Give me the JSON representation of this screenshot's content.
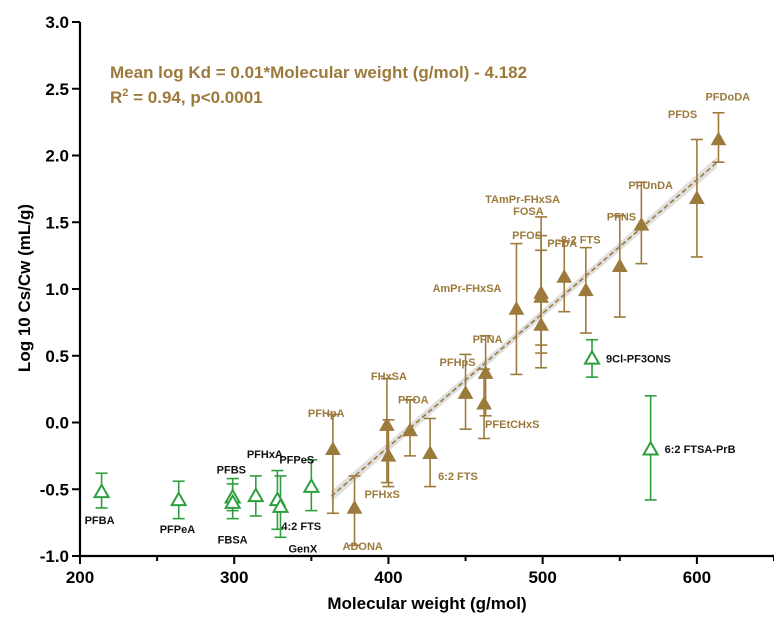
{
  "chart_data": {
    "type": "scatter",
    "title": "",
    "xlabel": "Molecular weight (g/mol)",
    "ylabel": "Log 10 Cs/Cw (mL/g)",
    "xlim": [
      200,
      650
    ],
    "ylim": [
      -1.0,
      3.0
    ],
    "xticks": [
      200,
      300,
      400,
      500,
      600
    ],
    "yticks": [
      -1.0,
      -0.5,
      0.0,
      0.5,
      1.0,
      1.5,
      2.0,
      2.5,
      3.0
    ],
    "ytick_labels": [
      "-1.0",
      "-0.5",
      "0.0",
      "0.5",
      "1.0",
      "1.5",
      "2.0",
      "2.5",
      "3.0"
    ],
    "grid": false,
    "annotation": {
      "equation": "Mean log Kd = 0.01*Molecular weight (g/mol) - 4.182",
      "r2_prefix": "R",
      "r2_sup": "2",
      "r2_rest": " = 0.94, p<0.0001"
    },
    "colors": {
      "brown": "#9c7a3c",
      "green": "#2e9e3e",
      "band": "#d9d9d9",
      "axis": "#000000"
    },
    "regression": {
      "slope": 0.01,
      "intercept": -4.182,
      "x_range": [
        363,
        613
      ]
    },
    "series": [
      {
        "marker": "filled-triangle",
        "color": "brown",
        "points": [
          {
            "x": 364,
            "y": -0.2,
            "lo": -0.68,
            "hi": 0.06,
            "label": "PFHpA",
            "lx": -25,
            "ly": -32
          },
          {
            "x": 378,
            "y": -0.64,
            "lo": -0.92,
            "hi": -0.4,
            "label": "ADONA",
            "lx": -12,
            "ly": 42
          },
          {
            "x": 399,
            "y": -0.02,
            "lo": -0.45,
            "hi": 0.33,
            "label": "FHxSA",
            "lx": -16,
            "ly": -45
          },
          {
            "x": 400,
            "y": -0.25,
            "lo": -0.48,
            "hi": 0.02,
            "label": "PFHxS",
            "lx": -24,
            "ly": 42
          },
          {
            "x": 414,
            "y": -0.06,
            "lo": -0.25,
            "hi": 0.17,
            "label": "PFOA",
            "lx": -12,
            "ly": -27
          },
          {
            "x": 427,
            "y": -0.23,
            "lo": -0.48,
            "hi": 0.03,
            "label": "6:2 FTS",
            "lx": 8,
            "ly": 27
          },
          {
            "x": 450,
            "y": 0.22,
            "lo": -0.05,
            "hi": 0.51,
            "label": "PFHpS",
            "lx": -26,
            "ly": -27
          },
          {
            "x": 463,
            "y": 0.37,
            "lo": 0.05,
            "hi": 0.65,
            "label": "PFNA",
            "lx": -13,
            "ly": -30
          },
          {
            "x": 462,
            "y": 0.14,
            "lo": -0.12,
            "hi": 0.4,
            "label": "PFEtCHxS",
            "lx": 1,
            "ly": 24
          },
          {
            "x": 483,
            "y": 0.85,
            "lo": 0.36,
            "hi": 1.34,
            "label": "AmPr-FHxSA",
            "lx": -84,
            "ly": -17
          },
          {
            "x": 499,
            "y": 0.94,
            "lo": 0.52,
            "hi": 1.54,
            "label": "TAmPr-FHxSA",
            "lx": -56,
            "ly": -94
          },
          {
            "x": 499,
            "y": 0.97,
            "lo": 0.58,
            "hi": 1.4,
            "label": "FOSA",
            "lx": -28,
            "ly": -78
          },
          {
            "x": 499,
            "y": 0.73,
            "lo": 0.41,
            "hi": 1.29,
            "label": "PFOS",
            "lx": -29,
            "ly": -86
          },
          {
            "x": 514,
            "y": 1.09,
            "lo": 0.83,
            "hi": 1.36,
            "label": "PFDA",
            "lx": -17,
            "ly": -30
          },
          {
            "x": 528,
            "y": 0.99,
            "lo": 0.67,
            "hi": 1.31,
            "label": "8:2 FTS",
            "lx": -25,
            "ly": -47
          },
          {
            "x": 550,
            "y": 1.17,
            "lo": 0.79,
            "hi": 1.55,
            "label": "PFNS",
            "lx": -13,
            "ly": -46
          },
          {
            "x": 564,
            "y": 1.48,
            "lo": 1.19,
            "hi": 1.8,
            "label": "PFUnDA",
            "lx": -13,
            "ly": -36
          },
          {
            "x": 600,
            "y": 1.68,
            "lo": 1.24,
            "hi": 2.12,
            "label": "PFDS",
            "lx": -29,
            "ly": -80
          },
          {
            "x": 614,
            "y": 2.12,
            "lo": 1.95,
            "hi": 2.32,
            "label": "PFDoDA",
            "lx": -13,
            "ly": -39
          }
        ]
      },
      {
        "marker": "open-triangle",
        "color": "green",
        "points": [
          {
            "x": 214,
            "y": -0.52,
            "lo": -0.64,
            "hi": -0.38,
            "label": "PFBA",
            "lx": -17,
            "ly": 32
          },
          {
            "x": 264,
            "y": -0.58,
            "lo": -0.72,
            "hi": -0.44,
            "label": "PFPeA",
            "lx": -19,
            "ly": 33
          },
          {
            "x": 299,
            "y": -0.56,
            "lo": -0.66,
            "hi": -0.42,
            "label": "PFBS",
            "lx": -16,
            "ly": -24
          },
          {
            "x": 299,
            "y": -0.6,
            "lo": -0.72,
            "hi": -0.46,
            "label": "FBSA",
            "lx": -15,
            "ly": 41
          },
          {
            "x": 314,
            "y": -0.55,
            "lo": -0.7,
            "hi": -0.4,
            "label": "PFHxA",
            "lx": -9,
            "ly": -38
          },
          {
            "x": 328,
            "y": -0.58,
            "lo": -0.8,
            "hi": -0.36,
            "label": "4:2 FTS",
            "lx": 4,
            "ly": 30
          },
          {
            "x": 330,
            "y": -0.63,
            "lo": -0.86,
            "hi": -0.4,
            "label": "GenX",
            "lx": 8,
            "ly": 46
          },
          {
            "x": 350,
            "y": -0.48,
            "lo": -0.66,
            "hi": -0.28,
            "label": "PFPeS",
            "lx": -32,
            "ly": -23
          },
          {
            "x": 532,
            "y": 0.48,
            "lo": 0.34,
            "hi": 0.62,
            "label": "9Cl-PF3ONS",
            "lx": 14,
            "ly": 4
          },
          {
            "x": 570,
            "y": -0.2,
            "lo": -0.58,
            "hi": 0.2,
            "label": "6:2 FTSA-PrB",
            "lx": 14,
            "ly": 4
          }
        ]
      }
    ]
  }
}
